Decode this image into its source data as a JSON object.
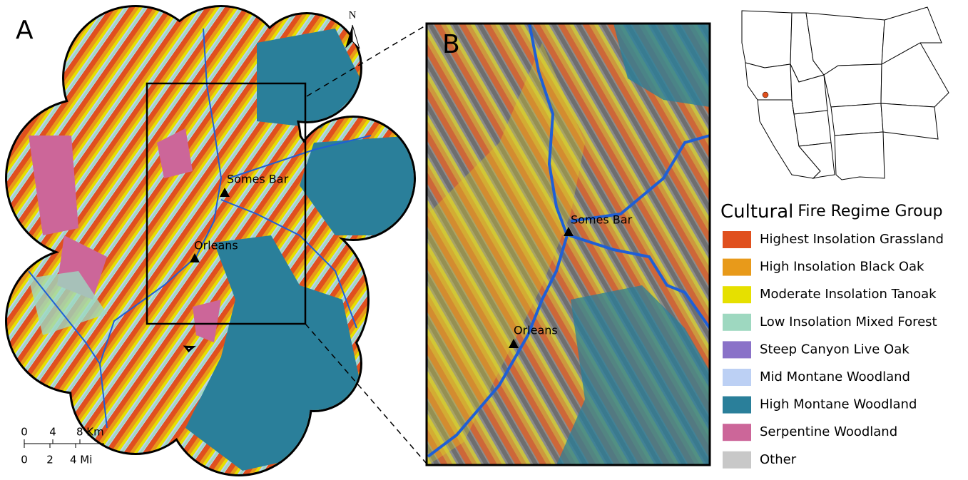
{
  "panel_a": {
    "label": "A",
    "north": "N",
    "places": [
      {
        "name": "Somes Bar"
      },
      {
        "name": "Orleans"
      }
    ],
    "scale_km": [
      "0",
      "4",
      "8 Km"
    ],
    "scale_mi": [
      "0",
      "2",
      "4 Mi"
    ]
  },
  "panel_b": {
    "label": "B",
    "places": [
      {
        "name": "Somes Bar"
      },
      {
        "name": "Orleans"
      }
    ]
  },
  "legend": {
    "title_bold": "Cultural",
    "title_rest": "Fire Regime Group",
    "items": [
      {
        "label": "Highest Insolation Grassland",
        "color": "#e0501e"
      },
      {
        "label": "High Insolation Black Oak",
        "color": "#e89a1a"
      },
      {
        "label": "Moderate Insolation Tanoak",
        "color": "#e6e000"
      },
      {
        "label": "Low Insolation Mixed Forest",
        "color": "#9ed8c0"
      },
      {
        "label": "Steep Canyon Live Oak",
        "color": "#8a72c8"
      },
      {
        "label": "Mid Montane Woodland",
        "color": "#bcd0f4"
      },
      {
        "label": "High Montane Woodland",
        "color": "#2a7f9a"
      },
      {
        "label": "Serpentine Woodland",
        "color": "#cc6699"
      },
      {
        "label": "Other",
        "color": "#c8c8c8"
      }
    ]
  }
}
